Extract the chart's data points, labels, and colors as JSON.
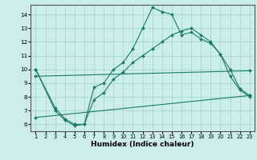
{
  "xlabel": "Humidex (Indice chaleur)",
  "xlim": [
    0.5,
    23.5
  ],
  "ylim": [
    5.5,
    14.7
  ],
  "yticks": [
    6,
    7,
    8,
    9,
    10,
    11,
    12,
    13,
    14
  ],
  "xticks": [
    1,
    2,
    3,
    4,
    5,
    6,
    7,
    8,
    9,
    10,
    11,
    12,
    13,
    14,
    15,
    16,
    17,
    18,
    19,
    20,
    21,
    22,
    23
  ],
  "background_color": "#cceee8",
  "grid_color": "#aaddcc",
  "line_color": "#1a7a6a",
  "lines": [
    {
      "x": [
        1,
        3,
        4,
        5,
        6,
        7,
        8,
        9,
        10,
        11,
        12,
        13,
        14,
        15,
        16,
        17,
        18,
        19,
        20,
        21,
        22,
        23
      ],
      "y": [
        10.0,
        7.0,
        6.3,
        5.9,
        6.0,
        8.7,
        9.0,
        10.0,
        10.5,
        11.5,
        13.0,
        14.5,
        14.2,
        14.0,
        12.5,
        12.7,
        12.2,
        11.9,
        11.1,
        10.0,
        8.6,
        8.1
      ]
    },
    {
      "x": [
        1,
        3,
        4,
        5,
        6,
        7,
        8,
        9,
        10,
        11,
        12,
        13,
        14,
        15,
        16,
        17,
        18,
        19,
        20,
        21,
        22,
        23
      ],
      "y": [
        10.0,
        7.2,
        6.4,
        6.0,
        6.0,
        7.8,
        8.3,
        9.3,
        9.8,
        10.5,
        11.0,
        11.5,
        12.0,
        12.5,
        12.8,
        13.0,
        12.5,
        12.0,
        11.1,
        9.5,
        8.5,
        8.0
      ]
    },
    {
      "x": [
        1,
        23
      ],
      "y": [
        9.5,
        9.9
      ]
    },
    {
      "x": [
        1,
        23
      ],
      "y": [
        6.5,
        8.1
      ]
    }
  ]
}
